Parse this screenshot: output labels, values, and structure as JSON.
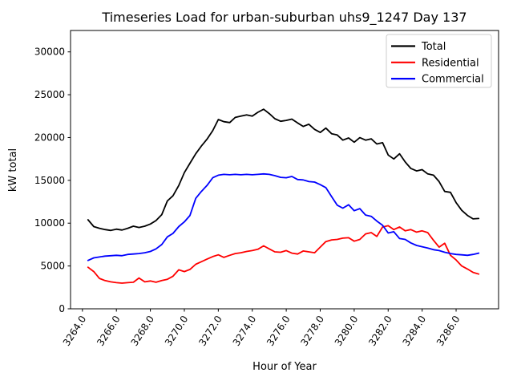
{
  "chart_data": {
    "type": "line",
    "title": "Timeseries Load for urban-suburban uhs9_1247  Day 137",
    "xlabel": "Hour of Year",
    "ylabel": "kW total",
    "xlim": [
      3263.3,
      3288.5
    ],
    "ylim": [
      0,
      32500
    ],
    "grid": false,
    "legend_position": "upper right",
    "colors": {
      "background": "#ffffff",
      "axes": "#000000",
      "legend_border": "#cccccc",
      "total": "#000000",
      "residential": "#ff0000",
      "commercial": "#0000ff"
    },
    "xticks": {
      "values": [
        3264,
        3266,
        3268,
        3270,
        3272,
        3274,
        3276,
        3278,
        3280,
        3282,
        3284,
        3286
      ],
      "labels": [
        "3264.0",
        "3266.0",
        "3268.0",
        "3270.0",
        "3272.0",
        "3274.0",
        "3276.0",
        "3278.0",
        "3280.0",
        "3282.0",
        "3284.0",
        "3286.0"
      ]
    },
    "yticks": {
      "values": [
        0,
        5000,
        10000,
        15000,
        20000,
        25000,
        30000
      ],
      "labels": [
        "0",
        "5000",
        "10000",
        "15000",
        "20000",
        "25000",
        "30000"
      ]
    },
    "x": [
      3264.33,
      3264.67,
      3265.0,
      3265.33,
      3265.67,
      3266.0,
      3266.33,
      3266.67,
      3267.0,
      3267.33,
      3267.67,
      3268.0,
      3268.33,
      3268.67,
      3269.0,
      3269.33,
      3269.67,
      3270.0,
      3270.33,
      3270.67,
      3271.0,
      3271.33,
      3271.67,
      3272.0,
      3272.33,
      3272.67,
      3273.0,
      3273.33,
      3273.67,
      3274.0,
      3274.33,
      3274.67,
      3275.0,
      3275.33,
      3275.67,
      3276.0,
      3276.33,
      3276.67,
      3277.0,
      3277.33,
      3277.67,
      3278.0,
      3278.33,
      3278.67,
      3279.0,
      3279.33,
      3279.67,
      3280.0,
      3280.33,
      3280.67,
      3281.0,
      3281.33,
      3281.67,
      3282.0,
      3282.33,
      3282.67,
      3283.0,
      3283.33,
      3283.67,
      3284.0,
      3284.33,
      3284.67,
      3285.0,
      3285.33,
      3285.67,
      3286.0,
      3286.33,
      3286.67,
      3287.0,
      3287.33
    ],
    "series": [
      {
        "name": "Total",
        "color": "#000000",
        "values": [
          10400,
          9600,
          9400,
          9250,
          9150,
          9300,
          9200,
          9400,
          9650,
          9500,
          9650,
          9900,
          10300,
          11000,
          12600,
          13200,
          14400,
          15900,
          17000,
          18100,
          19000,
          19800,
          20800,
          22100,
          21850,
          21750,
          22350,
          22500,
          22650,
          22500,
          22950,
          23300,
          22800,
          22200,
          21900,
          22000,
          22150,
          21700,
          21300,
          21550,
          20950,
          20600,
          21100,
          20450,
          20300,
          19700,
          19950,
          19450,
          19990,
          19700,
          19850,
          19250,
          19400,
          17950,
          17500,
          18100,
          17150,
          16400,
          16100,
          16250,
          15750,
          15600,
          14850,
          13700,
          13600,
          12400,
          11500,
          10900,
          10500,
          10550
        ]
      },
      {
        "name": "Residential",
        "color": "#ff0000",
        "values": [
          4850,
          4350,
          3550,
          3300,
          3150,
          3050,
          3000,
          3050,
          3100,
          3600,
          3150,
          3250,
          3100,
          3300,
          3450,
          3800,
          4550,
          4350,
          4600,
          5200,
          5500,
          5800,
          6100,
          6300,
          6000,
          6250,
          6450,
          6550,
          6700,
          6800,
          6950,
          7350,
          7000,
          6650,
          6600,
          6800,
          6500,
          6400,
          6750,
          6650,
          6550,
          7200,
          7850,
          8050,
          8100,
          8250,
          8300,
          7900,
          8100,
          8750,
          8900,
          8450,
          9550,
          9700,
          9250,
          9550,
          9100,
          9250,
          8950,
          9100,
          8900,
          8000,
          7200,
          7650,
          6250,
          5700,
          5000,
          4650,
          4250,
          4060
        ]
      },
      {
        "name": "Commercial",
        "color": "#0000ff",
        "values": [
          5650,
          5950,
          6050,
          6150,
          6200,
          6250,
          6200,
          6350,
          6400,
          6450,
          6550,
          6700,
          7000,
          7500,
          8400,
          8800,
          9600,
          10150,
          10900,
          12900,
          13700,
          14400,
          15300,
          15600,
          15700,
          15650,
          15700,
          15650,
          15700,
          15650,
          15700,
          15750,
          15700,
          15550,
          15350,
          15300,
          15450,
          15100,
          15050,
          14850,
          14800,
          14500,
          14150,
          13100,
          12100,
          11750,
          12150,
          11450,
          11700,
          10950,
          10800,
          10250,
          9750,
          8850,
          9000,
          8200,
          8100,
          7700,
          7400,
          7250,
          7100,
          6900,
          6800,
          6600,
          6450,
          6350,
          6300,
          6250,
          6350,
          6500
        ]
      }
    ]
  }
}
